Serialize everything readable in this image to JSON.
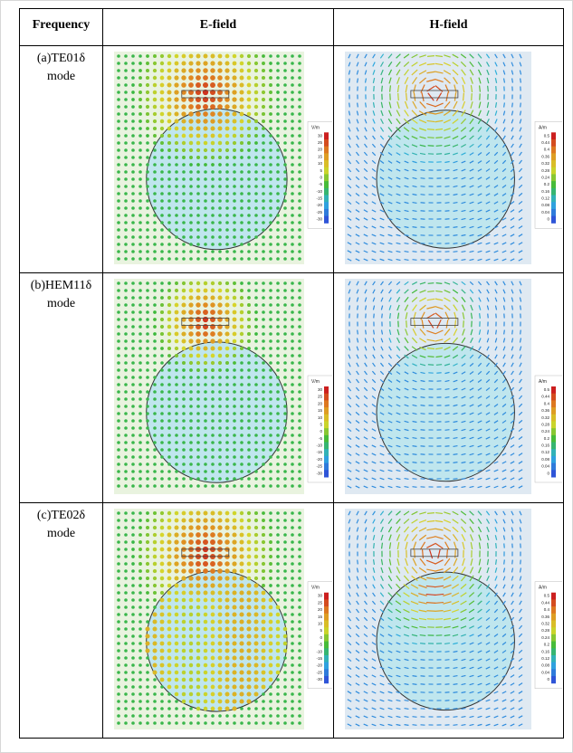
{
  "table": {
    "headers": [
      "Frequency",
      "E-field",
      "H-field"
    ],
    "rows": [
      {
        "label_line1": "(a)TE01δ",
        "label_line2": "mode",
        "e_mode": "te01",
        "h_mode": "te01"
      },
      {
        "label_line1": "(b)HEM11δ",
        "label_line2": "mode",
        "e_mode": "hem11",
        "h_mode": "hem11"
      },
      {
        "label_line1": "(c)TE02δ",
        "label_line2": "mode",
        "e_mode": "te02",
        "h_mode": "te02"
      }
    ]
  },
  "e_legend": {
    "unit": "V/m",
    "ticks": [
      "30",
      "25",
      "20",
      "15",
      "10",
      "5",
      "0",
      "-5",
      "-10",
      "-15",
      "-20",
      "-25",
      "-30"
    ]
  },
  "h_legend": {
    "unit": "A/m",
    "ticks": [
      "0.5",
      "0.44",
      "0.4",
      "0.36",
      "0.32",
      "0.28",
      "0.24",
      "0.2",
      "0.16",
      "0.12",
      "0.08",
      "0.04",
      "0"
    ]
  },
  "colors": {
    "red": "#cc1f1f",
    "green": "#3aa83a",
    "blue": "#2f6fd6",
    "cyan_fill": "#bfe6ee"
  }
}
